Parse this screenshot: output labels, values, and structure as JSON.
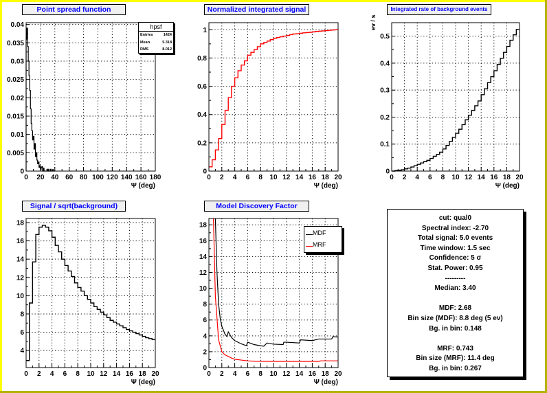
{
  "pads": {
    "psf": {
      "title": "Point spread function"
    },
    "signal": {
      "title": "Normalized integrated signal"
    },
    "background": {
      "title": "Integrated rate of background events",
      "ylabel": "ev / s"
    },
    "snr": {
      "title": "Signal / sqrt(background)"
    },
    "mdf": {
      "title": "Model Discovery Factor"
    }
  },
  "stats": {
    "name": "hpsf",
    "rows": [
      {
        "label": "Entries",
        "value": "1424"
      },
      {
        "label": "Mean",
        "value": "5.318"
      },
      {
        "label": "RMS",
        "value": "8.012"
      }
    ]
  },
  "legend": {
    "mdf": "MDF",
    "mrf": "MRF"
  },
  "info": [
    "cut: qual0",
    "Spectral index: -2.70",
    "Total signal: 5.0 events",
    "Time window: 1.5 sec",
    "Confidence: 5 σ",
    "Stat. Power: 0.95",
    "---------",
    "Median: 3.40",
    "",
    "MDF: 2.68",
    "Bin size (MDF): 8.8 deg (5 ev)",
    "Bg. in bin: 0.148",
    "",
    "MRF: 0.743",
    "Bin size (MRF): 11.4 deg",
    "Bg. in bin: 0.267"
  ],
  "colors": {
    "border_light": "#ffff00",
    "border_dark": "#b4b400",
    "title_text": "#0000ff",
    "red": "#ff0000",
    "black": "#000000"
  },
  "chart_data": [
    {
      "id": "psf",
      "type": "bar",
      "style": "histogram",
      "title": "Point spread function",
      "xlabel": "Ψ (deg)",
      "ylabel": "",
      "xlim": [
        0,
        180
      ],
      "ylim": [
        0,
        0.0405
      ],
      "bin_width": 1,
      "bin_start": 0,
      "xticks": [
        "0",
        "20",
        "40",
        "60",
        "80",
        "100",
        "120",
        "140",
        "160",
        "180"
      ],
      "xtick_values": [
        0,
        20,
        40,
        60,
        80,
        100,
        120,
        140,
        160,
        180
      ],
      "yticks": [
        "0",
        "0.005",
        "0.01",
        "0.015",
        "0.02",
        "0.025",
        "0.03",
        "0.035",
        "0.04"
      ],
      "ytick_values": [
        0,
        0.005,
        0.01,
        0.015,
        0.02,
        0.025,
        0.03,
        0.035,
        0.04
      ],
      "color": "#000000",
      "grid": true,
      "values": [
        0.036,
        0.039,
        0.034,
        0.03,
        0.026,
        0.022,
        0.017,
        0.013,
        0.011,
        0.0085,
        0.0095,
        0.006,
        0.0075,
        0.004,
        0.005,
        0.003,
        0.002,
        0.0025,
        0.001,
        0.0015,
        0.0005,
        0.001,
        0.0012,
        0,
        0.0008,
        0,
        0,
        0,
        0,
        0.0005,
        0,
        0.0005,
        0,
        0,
        0.0005,
        0,
        0,
        0.0004,
        0,
        0
      ]
    },
    {
      "id": "signal",
      "type": "line",
      "style": "histogram",
      "title": "Normalized integrated signal",
      "xlabel": "Ψ (deg)",
      "ylabel": "",
      "xlim": [
        0,
        20
      ],
      "ylim": [
        0,
        1.05
      ],
      "bin_width": 0.5,
      "bin_start": 0,
      "xticks": [
        "0",
        "2",
        "4",
        "6",
        "8",
        "10",
        "12",
        "14",
        "16",
        "18",
        "20"
      ],
      "xtick_values": [
        0,
        2,
        4,
        6,
        8,
        10,
        12,
        14,
        16,
        18,
        20
      ],
      "yticks": [
        "0",
        "0.2",
        "0.4",
        "0.6",
        "0.8",
        "1"
      ],
      "ytick_values": [
        0,
        0.2,
        0.4,
        0.6,
        0.8,
        1
      ],
      "color": "#ff0000",
      "grid": true,
      "values": [
        0.03,
        0.08,
        0.15,
        0.23,
        0.33,
        0.43,
        0.52,
        0.6,
        0.66,
        0.71,
        0.75,
        0.78,
        0.82,
        0.84,
        0.86,
        0.88,
        0.9,
        0.91,
        0.92,
        0.93,
        0.94,
        0.945,
        0.95,
        0.955,
        0.96,
        0.965,
        0.97,
        0.972,
        0.975,
        0.978,
        0.98,
        0.982,
        0.985,
        0.988,
        0.99,
        0.992,
        0.994,
        0.996,
        0.998,
        1.0
      ]
    },
    {
      "id": "background",
      "type": "line",
      "style": "histogram",
      "title": "Integrated rate of background events",
      "xlabel": "Ψ (deg)",
      "ylabel": "ev / s",
      "xlim": [
        0,
        20
      ],
      "ylim": [
        0,
        0.55
      ],
      "bin_width": 0.5,
      "bin_start": 0,
      "xticks": [
        "0",
        "2",
        "4",
        "6",
        "8",
        "10",
        "12",
        "14",
        "16",
        "18",
        "20"
      ],
      "xtick_values": [
        0,
        2,
        4,
        6,
        8,
        10,
        12,
        14,
        16,
        18,
        20
      ],
      "yticks": [
        "0",
        "0.1",
        "0.2",
        "0.3",
        "0.4",
        "0.5"
      ],
      "ytick_values": [
        0,
        0.1,
        0.2,
        0.3,
        0.4,
        0.5
      ],
      "color": "#000000",
      "grid": true,
      "values": [
        0,
        0.002,
        0.003,
        0.005,
        0.008,
        0.011,
        0.015,
        0.02,
        0.025,
        0.03,
        0.035,
        0.04,
        0.047,
        0.055,
        0.062,
        0.07,
        0.082,
        0.095,
        0.11,
        0.125,
        0.14,
        0.155,
        0.172,
        0.19,
        0.207,
        0.225,
        0.242,
        0.26,
        0.283,
        0.305,
        0.328,
        0.35,
        0.372,
        0.395,
        0.418,
        0.44,
        0.462,
        0.485,
        0.505,
        0.525
      ]
    },
    {
      "id": "snr",
      "type": "line",
      "style": "histogram",
      "title": "Signal / sqrt(background)",
      "xlabel": "Ψ (deg)",
      "ylabel": "",
      "xlim": [
        0,
        20
      ],
      "ylim": [
        2.13,
        18.45
      ],
      "bin_width": 0.5,
      "bin_start": 0,
      "xticks": [
        "0",
        "2",
        "4",
        "6",
        "8",
        "10",
        "12",
        "14",
        "16",
        "18",
        "20"
      ],
      "xtick_values": [
        0,
        2,
        4,
        6,
        8,
        10,
        12,
        14,
        16,
        18,
        20
      ],
      "yticks": [
        "4",
        "6",
        "8",
        "10",
        "12",
        "14",
        "16",
        "18"
      ],
      "ytick_values": [
        4,
        6,
        8,
        10,
        12,
        14,
        16,
        18
      ],
      "color": "#000000",
      "grid": true,
      "values": [
        2.9,
        9.2,
        13.7,
        16.7,
        17.5,
        17.7,
        17.5,
        17.1,
        16.4,
        15.5,
        14.8,
        14.0,
        13.3,
        12.7,
        12.1,
        11.4,
        10.9,
        10.5,
        10.0,
        9.6,
        9.2,
        8.8,
        8.5,
        8.2,
        7.9,
        7.6,
        7.3,
        7.1,
        6.9,
        6.7,
        6.5,
        6.3,
        6.15,
        6.0,
        5.85,
        5.7,
        5.55,
        5.4,
        5.3,
        5.2
      ]
    },
    {
      "id": "mdf",
      "type": "line",
      "title": "Model Discovery Factor",
      "xlabel": "Ψ (deg)",
      "ylabel": "",
      "xlim": [
        0,
        20
      ],
      "ylim": [
        0,
        18.8
      ],
      "xticks": [
        "0",
        "2",
        "4",
        "6",
        "8",
        "10",
        "12",
        "14",
        "16",
        "18",
        "20"
      ],
      "xtick_values": [
        0,
        2,
        4,
        6,
        8,
        10,
        12,
        14,
        16,
        18,
        20
      ],
      "yticks": [
        "0",
        "2",
        "4",
        "6",
        "8",
        "10",
        "12",
        "14",
        "16",
        "18"
      ],
      "ytick_values": [
        0,
        2,
        4,
        6,
        8,
        10,
        12,
        14,
        16,
        18
      ],
      "grid": true,
      "legend_position": "top-right",
      "series": [
        {
          "name": "MDF",
          "color": "#000000",
          "x": [
            1,
            1.25,
            1.5,
            1.75,
            2,
            2.5,
            2.8,
            3,
            3.5,
            4,
            5,
            5.8,
            6,
            7,
            8,
            8.5,
            9,
            10,
            11.5,
            11.6,
            12,
            14,
            14.2,
            16,
            17,
            19,
            19.2,
            20
          ],
          "y": [
            18.8,
            12,
            8,
            6.2,
            5.2,
            4.2,
            3.9,
            4.5,
            3.8,
            3.4,
            3.0,
            2.75,
            3.2,
            2.9,
            2.75,
            2.7,
            3.1,
            2.95,
            2.9,
            3.2,
            3.2,
            3.1,
            3.5,
            3.4,
            3.6,
            3.6,
            3.9,
            3.85
          ]
        },
        {
          "name": "MRF",
          "color": "#ff0000",
          "x": [
            0.7,
            1,
            1.5,
            2,
            2.5,
            3,
            3.5,
            4,
            5,
            6,
            7,
            10,
            17,
            17.3,
            20
          ],
          "y": [
            18.8,
            9,
            3.5,
            2.0,
            1.6,
            1.4,
            1.2,
            1.05,
            0.95,
            0.85,
            0.8,
            0.78,
            0.78,
            0.85,
            0.85
          ]
        }
      ]
    }
  ]
}
